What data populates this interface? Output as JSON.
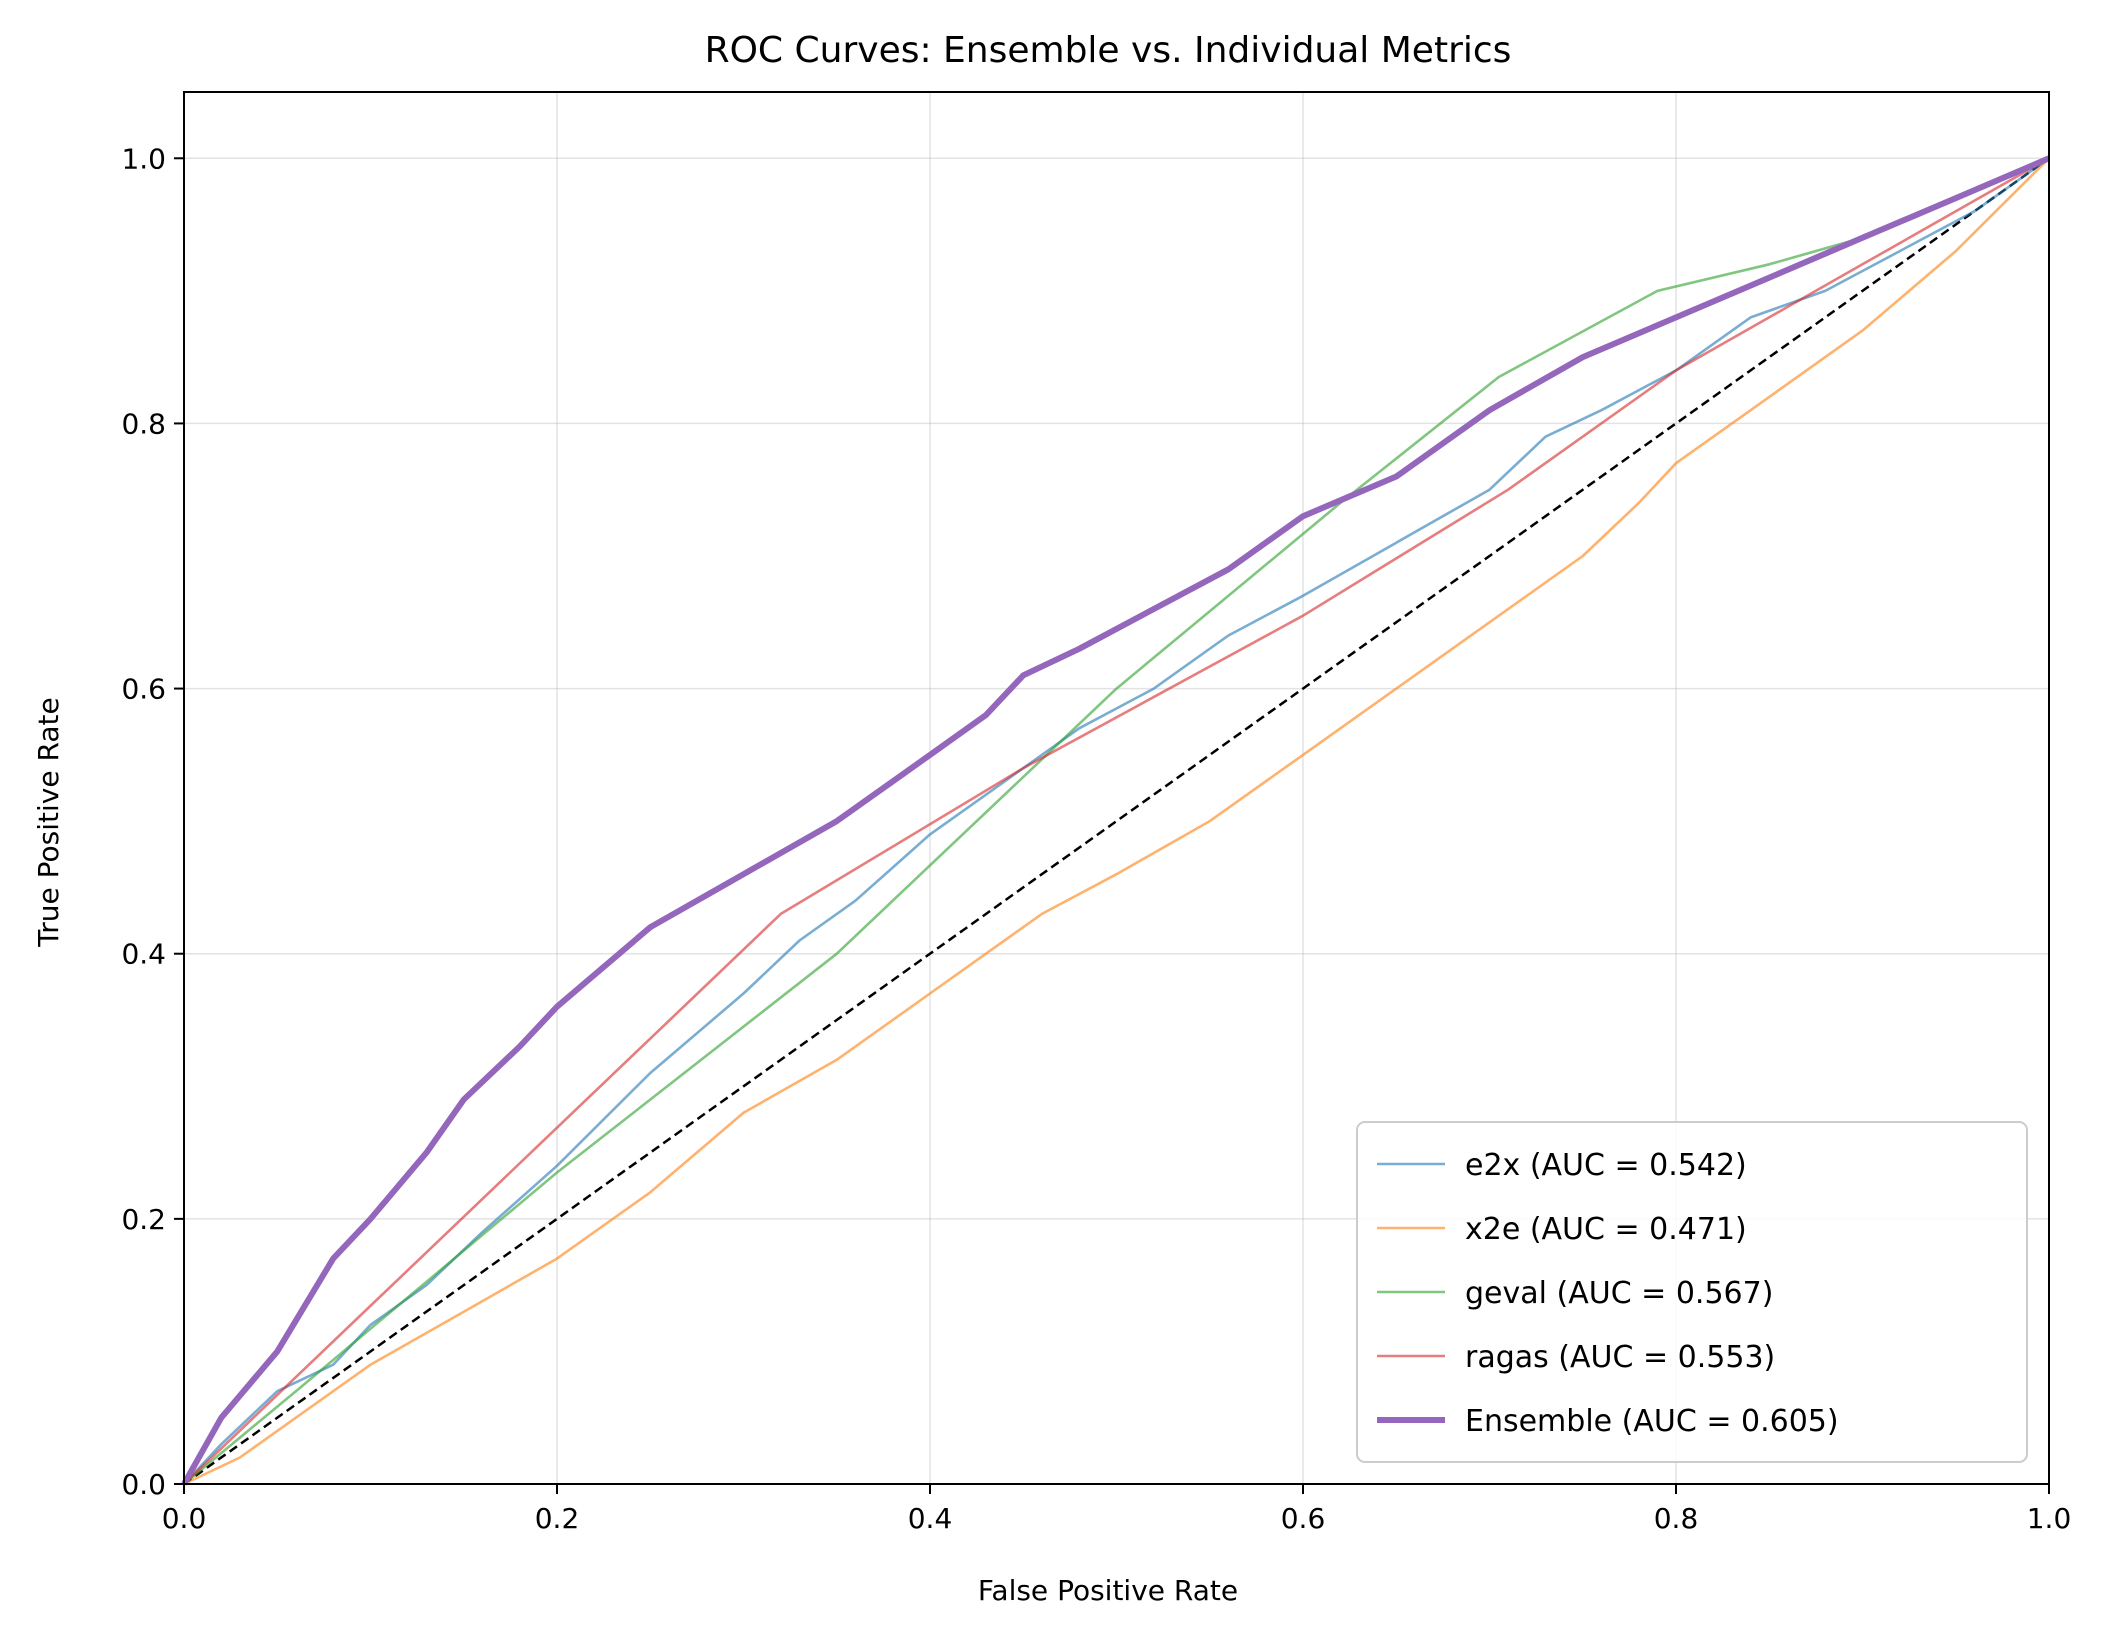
{
  "chart_data": {
    "type": "line",
    "title": "ROC Curves: Ensemble vs. Individual Metrics",
    "xlabel": "False Positive Rate",
    "ylabel": "True Positive Rate",
    "xlim": [
      0.0,
      1.0
    ],
    "ylim": [
      0.0,
      1.05
    ],
    "xticks": [
      "0.0",
      "0.2",
      "0.4",
      "0.6",
      "0.8",
      "1.0"
    ],
    "yticks": [
      "0.0",
      "0.2",
      "0.4",
      "0.6",
      "0.8",
      "1.0"
    ],
    "grid": true,
    "legend_position": "bottom-right",
    "diagonal": {
      "x": [
        0,
        1
      ],
      "y": [
        0,
        1
      ],
      "color": "#000000",
      "style": "dashed"
    },
    "series": [
      {
        "name": "e2x (AUC = 0.542)",
        "color": "#1f77b4",
        "x": [
          0,
          0.02,
          0.05,
          0.08,
          0.1,
          0.13,
          0.16,
          0.2,
          0.25,
          0.3,
          0.33,
          0.36,
          0.4,
          0.44,
          0.48,
          0.52,
          0.56,
          0.6,
          0.65,
          0.7,
          0.73,
          0.76,
          0.8,
          0.84,
          0.88,
          0.92,
          0.96,
          1.0
        ],
        "y": [
          0,
          0.03,
          0.07,
          0.09,
          0.12,
          0.15,
          0.19,
          0.24,
          0.31,
          0.37,
          0.41,
          0.44,
          0.49,
          0.53,
          0.57,
          0.6,
          0.64,
          0.67,
          0.71,
          0.75,
          0.79,
          0.81,
          0.84,
          0.88,
          0.9,
          0.93,
          0.96,
          1.0
        ]
      },
      {
        "name": "x2e (AUC = 0.471)",
        "color": "#ff7f0e",
        "x": [
          0,
          0.03,
          0.06,
          0.1,
          0.15,
          0.2,
          0.25,
          0.3,
          0.35,
          0.4,
          0.43,
          0.46,
          0.5,
          0.55,
          0.6,
          0.65,
          0.7,
          0.75,
          0.78,
          0.8,
          0.85,
          0.9,
          0.95,
          1.0
        ],
        "y": [
          0,
          0.02,
          0.05,
          0.09,
          0.13,
          0.17,
          0.22,
          0.28,
          0.32,
          0.37,
          0.4,
          0.43,
          0.46,
          0.5,
          0.55,
          0.6,
          0.65,
          0.7,
          0.74,
          0.77,
          0.82,
          0.87,
          0.93,
          1.0
        ]
      },
      {
        "name": "geval (AUC = 0.567)",
        "color": "#2ca02c",
        "x": [
          0,
          0.06,
          0.2,
          0.35,
          0.5,
          0.62,
          0.705,
          0.79,
          0.85,
          0.9,
          1.0
        ],
        "y": [
          0,
          0.07,
          0.235,
          0.4,
          0.6,
          0.74,
          0.835,
          0.9,
          0.92,
          0.94,
          1.0
        ]
      },
      {
        "name": "ragas (AUC = 0.553)",
        "color": "#d62728",
        "x": [
          0,
          0.32,
          0.45,
          0.6,
          0.71,
          0.8,
          0.9,
          1.0
        ],
        "y": [
          0,
          0.43,
          0.54,
          0.655,
          0.75,
          0.84,
          0.92,
          1.0
        ]
      },
      {
        "name": "Ensemble (AUC = 0.605)",
        "color": "#9467bd",
        "x": [
          0,
          0.02,
          0.05,
          0.08,
          0.1,
          0.13,
          0.15,
          0.18,
          0.2,
          0.25,
          0.3,
          0.35,
          0.4,
          0.43,
          0.45,
          0.48,
          0.52,
          0.56,
          0.6,
          0.65,
          0.7,
          0.75,
          0.8,
          0.85,
          0.9,
          0.95,
          1.0
        ],
        "y": [
          0,
          0.05,
          0.1,
          0.17,
          0.2,
          0.25,
          0.29,
          0.33,
          0.36,
          0.42,
          0.46,
          0.5,
          0.55,
          0.58,
          0.61,
          0.63,
          0.66,
          0.69,
          0.73,
          0.76,
          0.81,
          0.85,
          0.88,
          0.91,
          0.94,
          0.97,
          1.0
        ]
      }
    ]
  }
}
